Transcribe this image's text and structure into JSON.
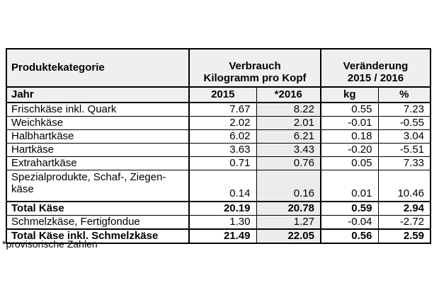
{
  "table": {
    "header": {
      "category": "Produktekategorie",
      "consumption_title": "Verbrauch\nKilogramm pro Kopf",
      "change_title": "Veränderung\n2015 / 2016"
    },
    "subheader": {
      "label": "Jahr",
      "col_2015": "2015",
      "col_2016": "*2016",
      "col_kg": "kg",
      "col_pct": "%"
    },
    "rows": [
      {
        "label": "Frischkäse inkl. Quark",
        "v2015": "7.67",
        "v2016": "8.22",
        "kg": "0.55",
        "pct": "7.23",
        "total": false,
        "tall": false
      },
      {
        "label": "Weichkäse",
        "v2015": "2.02",
        "v2016": "2.01",
        "kg": "-0.01",
        "pct": "-0.55",
        "total": false,
        "tall": false
      },
      {
        "label": "Halbhartkäse",
        "v2015": "6.02",
        "v2016": "6.21",
        "kg": "0.18",
        "pct": "3.04",
        "total": false,
        "tall": false
      },
      {
        "label": "Hartkäse",
        "v2015": "3.63",
        "v2016": "3.43",
        "kg": "-0.20",
        "pct": "-5.51",
        "total": false,
        "tall": false
      },
      {
        "label": "Extrahartkäse",
        "v2015": "0.71",
        "v2016": "0.76",
        "kg": "0.05",
        "pct": "7.33",
        "total": false,
        "tall": false
      },
      {
        "label": "Spezialprodukte, Schaf-, Ziegen-\nkäse",
        "v2015": "0.14",
        "v2016": "0.16",
        "kg": "0.01",
        "pct": "10.46",
        "total": false,
        "tall": true
      },
      {
        "label": "Total Käse",
        "v2015": "20.19",
        "v2016": "20.78",
        "kg": "0.59",
        "pct": "2.94",
        "total": true,
        "tall": false
      },
      {
        "label": "Schmelzkäse, Fertigfondue",
        "v2015": "1.30",
        "v2016": "1.27",
        "kg": "-0.04",
        "pct": "-2.72",
        "total": false,
        "tall": false
      },
      {
        "label": "Total Käse inkl. Schmelzkäse",
        "v2015": "21.49",
        "v2016": "22.05",
        "kg": "0.56",
        "pct": "2.59",
        "total": true,
        "tall": false
      }
    ]
  },
  "footnote": "*provisorische Zahlen",
  "colors": {
    "header_bg": "#efefef",
    "col_2016_bg": "#ececec",
    "border": "#000000",
    "text": "#000000",
    "page_bg": "#ffffff"
  },
  "chart_data": {
    "type": "table",
    "title": "Verbrauch Kilogramm pro Kopf / Veränderung 2015 / 2016",
    "columns": [
      "Produktekategorie",
      "2015",
      "*2016",
      "kg",
      "%"
    ],
    "rows": [
      [
        "Frischkäse inkl. Quark",
        7.67,
        8.22,
        0.55,
        7.23
      ],
      [
        "Weichkäse",
        2.02,
        2.01,
        -0.01,
        -0.55
      ],
      [
        "Halbhartkäse",
        6.02,
        6.21,
        0.18,
        3.04
      ],
      [
        "Hartkäse",
        3.63,
        3.43,
        -0.2,
        -5.51
      ],
      [
        "Extrahartkäse",
        0.71,
        0.76,
        0.05,
        7.33
      ],
      [
        "Spezialprodukte, Schaf-, Ziegenkäse",
        0.14,
        0.16,
        0.01,
        10.46
      ],
      [
        "Total Käse",
        20.19,
        20.78,
        0.59,
        2.94
      ],
      [
        "Schmelzkäse, Fertigfondue",
        1.3,
        1.27,
        -0.04,
        -2.72
      ],
      [
        "Total Käse inkl. Schmelzkäse",
        21.49,
        22.05,
        0.56,
        2.59
      ]
    ],
    "footnote": "*provisorische Zahlen"
  }
}
